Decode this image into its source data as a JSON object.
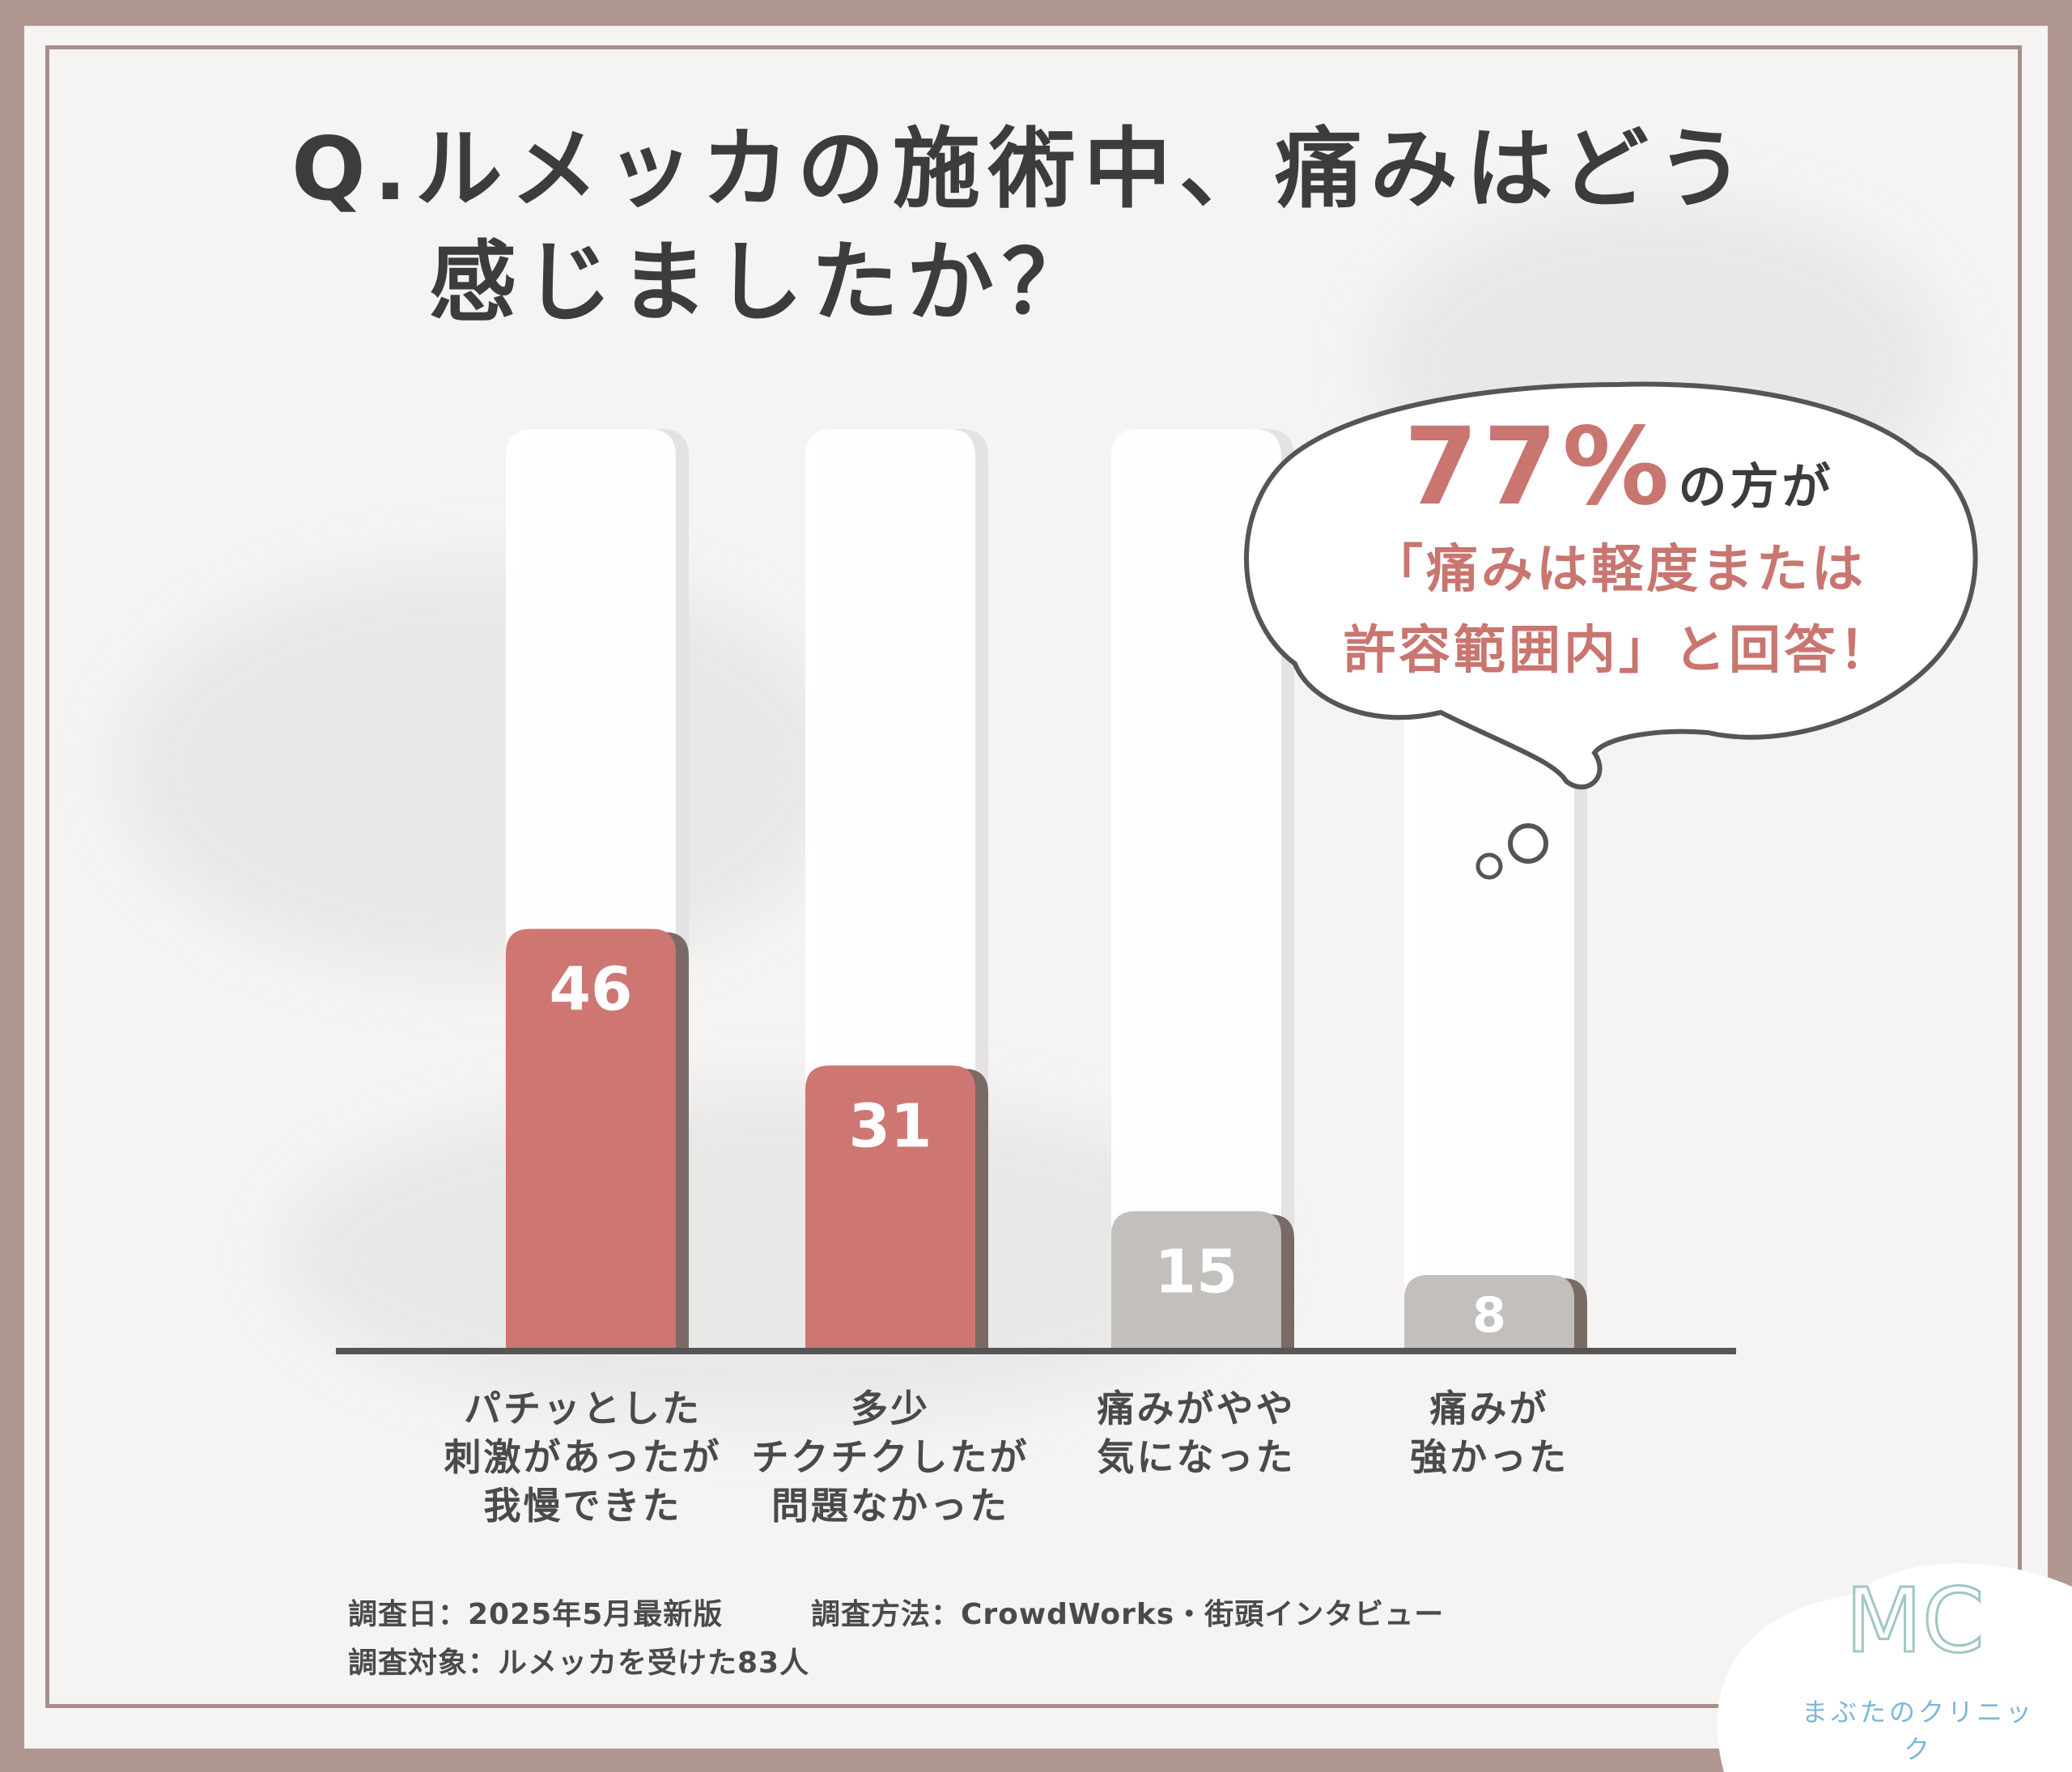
{
  "title": {
    "line1": "Q.ルメッカの施術中、痛みはどう",
    "line2": "感じましたか？"
  },
  "callout": {
    "big": "77%",
    "suffix": "の方が",
    "line1": "「痛みは軽度または",
    "line2": "許容範囲内」と回答！"
  },
  "notes": {
    "date": "調査日：2025年5月最新版",
    "method": "調査方法：CrowdWorks・街頭インタビュー",
    "target": "調査対象：ルメッカを受けた83人"
  },
  "logo": {
    "mark": "MC",
    "name": "まぶたのクリニック"
  },
  "colors": {
    "highlight": "#cd7672",
    "muted": "#c2bfbd",
    "shadow": "#7a6a66",
    "axis": "#555555",
    "frame": "#a89088",
    "logo": "#7cb8d8"
  },
  "chart_data": {
    "type": "bar",
    "categories": [
      [
        "パチッとした",
        "刺激があったが",
        "我慢できた"
      ],
      [
        "多少",
        "チクチクしたが",
        "問題なかった"
      ],
      [
        "痛みがやや",
        "気になった"
      ],
      [
        "痛みが",
        "強かった"
      ]
    ],
    "values": [
      46,
      31,
      15,
      8
    ],
    "highlighted": [
      true,
      true,
      false,
      false
    ],
    "ylim": [
      0,
      100
    ],
    "grid": false
  }
}
